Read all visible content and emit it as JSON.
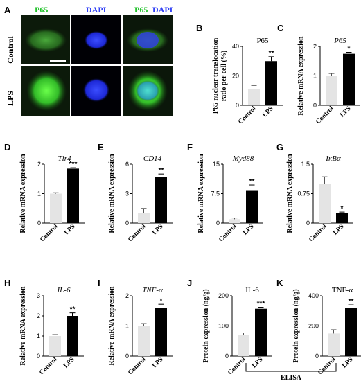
{
  "colors": {
    "control": "#e4e4e4",
    "lps": "#000000",
    "green": "#22c22a",
    "blue": "#2e3ef5"
  },
  "micrograph": {
    "panel_label": "A",
    "columns": [
      "P65",
      "DAPI",
      "P65 DAPI"
    ],
    "rows": [
      "Control",
      "LPS"
    ]
  },
  "elisa_label": "ELISA",
  "chart_data": [
    {
      "panel": "B",
      "type": "bar",
      "title": "P65",
      "title_italic": false,
      "ylabel": "P65 nuclear translocation ratio per cell (%)",
      "categories": [
        "Control",
        "LPS"
      ],
      "values": [
        11,
        30
      ],
      "errors": [
        2.5,
        3
      ],
      "ylim": [
        0,
        40
      ],
      "yticks": [
        "0",
        "20",
        "40"
      ],
      "significance": "**"
    },
    {
      "panel": "C",
      "type": "bar",
      "title": "P65",
      "title_italic": true,
      "ylabel": "Relative mRNA expression",
      "categories": [
        "Control",
        "LPS"
      ],
      "values": [
        1.0,
        1.75
      ],
      "errors": [
        0.08,
        0.05
      ],
      "ylim": [
        0,
        2
      ],
      "yticks": [
        "0",
        "1",
        "2"
      ],
      "significance": "*"
    },
    {
      "panel": "D",
      "type": "bar",
      "title": "Tlr4",
      "title_italic": true,
      "ylabel": "Relative mRNA expression",
      "categories": [
        "Control",
        "LPS"
      ],
      "values": [
        1.0,
        1.85
      ],
      "errors": [
        0.03,
        0.03
      ],
      "ylim": [
        0,
        2
      ],
      "yticks": [
        "0",
        "1",
        "2"
      ],
      "significance": "***"
    },
    {
      "panel": "E",
      "type": "bar",
      "title": "CD14",
      "title_italic": true,
      "ylabel": "Relative mRNA expression",
      "categories": [
        "Control",
        "LPS"
      ],
      "values": [
        1.0,
        4.7
      ],
      "errors": [
        0.5,
        0.3
      ],
      "ylim": [
        0,
        6
      ],
      "yticks": [
        "0",
        "3",
        "6"
      ],
      "significance": "**"
    },
    {
      "panel": "F",
      "type": "bar",
      "title": "Myd88",
      "title_italic": true,
      "ylabel": "Relative mRNA expression",
      "categories": [
        "Control",
        "LPS"
      ],
      "values": [
        1.0,
        8.2
      ],
      "errors": [
        0.3,
        1.5
      ],
      "ylim": [
        0,
        15
      ],
      "yticks": [
        "0",
        "7.5",
        "15"
      ],
      "significance": "**"
    },
    {
      "panel": "G",
      "type": "bar",
      "title": "IκBα",
      "title_italic": true,
      "ylabel": "Relative mRNA expression",
      "categories": [
        "Control",
        "LPS"
      ],
      "values": [
        1.0,
        0.25
      ],
      "errors": [
        0.18,
        0.03
      ],
      "ylim": [
        0,
        1.5
      ],
      "yticks": [
        "0",
        "0.75",
        "1.5"
      ],
      "significance": "*"
    },
    {
      "panel": "H",
      "type": "bar",
      "title": "IL-6",
      "title_italic": true,
      "ylabel": "Relative mRNA expression",
      "categories": [
        "Control",
        "LPS"
      ],
      "values": [
        1.0,
        2.0
      ],
      "errors": [
        0.07,
        0.15
      ],
      "ylim": [
        0,
        3
      ],
      "yticks": [
        "0",
        "1",
        "2",
        "3"
      ],
      "significance": "**"
    },
    {
      "panel": "I",
      "type": "bar",
      "title": "TNF-α",
      "title_italic": true,
      "ylabel": "Relative mRNA expression",
      "categories": [
        "Control",
        "LPS"
      ],
      "values": [
        1.0,
        1.6
      ],
      "errors": [
        0.08,
        0.12
      ],
      "ylim": [
        0,
        2
      ],
      "yticks": [
        "0",
        "1",
        "2"
      ],
      "significance": "*"
    },
    {
      "panel": "J",
      "type": "bar",
      "title": "IL-6",
      "title_italic": false,
      "ylabel": "Protein expression (ng/g)",
      "categories": [
        "Control",
        "LPS"
      ],
      "values": [
        70,
        157
      ],
      "errors": [
        7,
        5
      ],
      "ylim": [
        0,
        200
      ],
      "yticks": [
        "0",
        "100",
        "200"
      ],
      "significance": "***"
    },
    {
      "panel": "K",
      "type": "bar",
      "title": "TNF-α",
      "title_italic": false,
      "ylabel": "Protein expression (ng/g)",
      "categories": [
        "Control",
        "LPS"
      ],
      "values": [
        150,
        320
      ],
      "errors": [
        25,
        20
      ],
      "ylim": [
        0,
        400
      ],
      "yticks": [
        "0",
        "200",
        "400"
      ],
      "significance": "**"
    }
  ]
}
